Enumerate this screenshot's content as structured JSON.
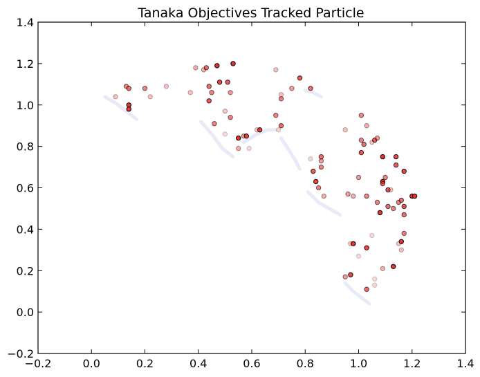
{
  "chart_data": {
    "type": "scatter",
    "title": "Tanaka Objectives Tracked Particle",
    "xlabel": "",
    "ylabel": "",
    "xlim": [
      -0.2,
      1.4
    ],
    "ylim": [
      -0.2,
      1.4
    ],
    "x_ticks": [
      "−0.2",
      "0.0",
      "0.2",
      "0.4",
      "0.6",
      "0.8",
      "1.0",
      "1.2",
      "1.4"
    ],
    "y_ticks": [
      "−0.2",
      "0.0",
      "0.2",
      "0.4",
      "0.6",
      "0.8",
      "1.0",
      "1.2",
      "1.4"
    ],
    "grid": false,
    "legend": "none",
    "colors": {
      "particle": "#e8322f",
      "particle_edge": "#000000",
      "front": "#bfc3ea"
    },
    "front_segments": [
      [
        [
          0.05,
          1.04
        ],
        [
          0.09,
          1.01
        ],
        [
          0.14,
          0.96
        ],
        [
          0.17,
          0.93
        ]
      ],
      [
        [
          0.41,
          0.92
        ],
        [
          0.45,
          0.86
        ],
        [
          0.49,
          0.79
        ],
        [
          0.53,
          0.75
        ]
      ],
      [
        [
          0.57,
          0.82
        ],
        [
          0.62,
          0.86
        ],
        [
          0.66,
          0.88
        ],
        [
          0.69,
          0.88
        ]
      ],
      [
        [
          0.71,
          0.84
        ],
        [
          0.73,
          0.8
        ],
        [
          0.76,
          0.74
        ],
        [
          0.78,
          0.69
        ]
      ],
      [
        [
          0.81,
          0.58
        ],
        [
          0.85,
          0.53
        ],
        [
          0.89,
          0.5
        ],
        [
          0.93,
          0.47
        ]
      ],
      [
        [
          0.8,
          1.07
        ],
        [
          0.83,
          1.06
        ],
        [
          0.86,
          1.04
        ]
      ],
      [
        [
          0.95,
          0.14
        ],
        [
          0.98,
          0.1
        ],
        [
          1.01,
          0.07
        ],
        [
          1.04,
          0.04
        ]
      ]
    ],
    "series": [
      {
        "label": "",
        "points": [
          [
            0.09,
            1.04,
            0.3
          ],
          [
            0.13,
            1.09,
            0.6
          ],
          [
            0.14,
            1.08,
            0.7
          ],
          [
            0.14,
            1.0,
            1.0
          ],
          [
            0.14,
            0.98,
            1.0
          ],
          [
            0.2,
            1.08,
            0.6
          ],
          [
            0.22,
            1.04,
            0.3
          ],
          [
            0.28,
            1.09,
            0.3
          ],
          [
            0.37,
            1.06,
            0.3
          ],
          [
            0.39,
            1.18,
            0.4
          ],
          [
            0.42,
            1.17,
            0.4
          ],
          [
            0.43,
            1.18,
            0.7
          ],
          [
            0.44,
            1.02,
            0.8
          ],
          [
            0.44,
            1.09,
            0.7
          ],
          [
            0.45,
            1.06,
            0.6
          ],
          [
            0.46,
            0.91,
            0.6
          ],
          [
            0.47,
            1.19,
            1.0
          ],
          [
            0.48,
            1.11,
            0.9
          ],
          [
            0.5,
            0.97,
            0.3
          ],
          [
            0.5,
            0.86,
            0.2
          ],
          [
            0.51,
            1.11,
            0.8
          ],
          [
            0.52,
            0.94,
            0.6
          ],
          [
            0.52,
            1.06,
            0.5
          ],
          [
            0.53,
            1.2,
            1.0
          ],
          [
            0.55,
            0.84,
            1.0
          ],
          [
            0.55,
            0.79,
            0.4
          ],
          [
            0.57,
            0.85,
            0.5
          ],
          [
            0.58,
            0.85,
            0.9
          ],
          [
            0.59,
            0.79,
            0.2
          ],
          [
            0.63,
            0.88,
            0.9
          ],
          [
            0.62,
            0.88,
            0.3
          ],
          [
            0.69,
            0.95,
            0.6
          ],
          [
            0.69,
            1.17,
            0.3
          ],
          [
            0.7,
            0.88,
            0.2
          ],
          [
            0.71,
            1.05,
            0.3
          ],
          [
            0.71,
            0.9,
            0.7
          ],
          [
            0.71,
            1.03,
            0.6
          ],
          [
            0.75,
            1.08,
            0.5
          ],
          [
            0.78,
            1.13,
            0.8
          ],
          [
            0.82,
            1.08,
            0.7
          ],
          [
            0.82,
            0.74,
            0.2
          ],
          [
            0.83,
            0.68,
            0.8
          ],
          [
            0.84,
            0.63,
            0.9
          ],
          [
            0.85,
            0.6,
            0.6
          ],
          [
            0.86,
            0.73,
            0.5
          ],
          [
            0.86,
            0.7,
            0.6
          ],
          [
            0.86,
            0.75,
            0.7
          ],
          [
            0.87,
            0.56,
            0.4
          ],
          [
            0.95,
            0.17,
            0.5
          ],
          [
            0.95,
            0.88,
            0.3
          ],
          [
            0.96,
            0.57,
            0.5
          ],
          [
            0.97,
            0.18,
            0.9
          ],
          [
            0.97,
            0.33,
            0.3
          ],
          [
            0.98,
            0.56,
            0.4
          ],
          [
            0.98,
            0.33,
            1.0
          ],
          [
            1.0,
            0.27,
            0.2
          ],
          [
            1.0,
            0.65,
            0.5
          ],
          [
            1.01,
            0.95,
            0.6
          ],
          [
            1.01,
            0.83,
            0.6
          ],
          [
            1.01,
            0.77,
            0.8
          ],
          [
            1.02,
            0.81,
            0.7
          ],
          [
            1.03,
            0.56,
            0.6
          ],
          [
            1.03,
            0.31,
            0.9
          ],
          [
            1.03,
            0.11,
            0.7
          ],
          [
            1.03,
            0.9,
            0.4
          ],
          [
            1.05,
            0.82,
            0.3
          ],
          [
            1.05,
            0.37,
            0.2
          ],
          [
            1.06,
            0.83,
            0.8
          ],
          [
            1.06,
            0.16,
            0.2
          ],
          [
            1.06,
            0.13,
            0.2
          ],
          [
            1.07,
            0.53,
            0.6
          ],
          [
            1.07,
            0.84,
            0.5
          ],
          [
            1.08,
            0.48,
            1.0
          ],
          [
            1.09,
            0.63,
            1.0
          ],
          [
            1.09,
            0.75,
            1.0
          ],
          [
            1.09,
            0.62,
            0.7
          ],
          [
            1.09,
            0.21,
            0.4
          ],
          [
            1.1,
            0.65,
            0.6
          ],
          [
            1.11,
            0.59,
            0.8
          ],
          [
            1.11,
            0.51,
            0.7
          ],
          [
            1.12,
            0.59,
            0.3
          ],
          [
            1.13,
            0.5,
            0.6
          ],
          [
            1.13,
            0.22,
            1.0
          ],
          [
            1.14,
            0.75,
            0.9
          ],
          [
            1.14,
            0.71,
            0.8
          ],
          [
            1.15,
            0.53,
            0.6
          ],
          [
            1.15,
            0.33,
            0.3
          ],
          [
            1.16,
            0.54,
            0.7
          ],
          [
            1.16,
            0.34,
            1.0
          ],
          [
            1.16,
            0.3,
            0.3
          ],
          [
            1.17,
            0.68,
            0.9
          ],
          [
            1.17,
            0.51,
            0.8
          ],
          [
            1.17,
            0.47,
            0.7
          ],
          [
            1.17,
            0.38,
            0.6
          ],
          [
            1.2,
            0.56,
            1.0
          ],
          [
            1.21,
            0.56,
            1.0
          ]
        ]
      }
    ]
  }
}
